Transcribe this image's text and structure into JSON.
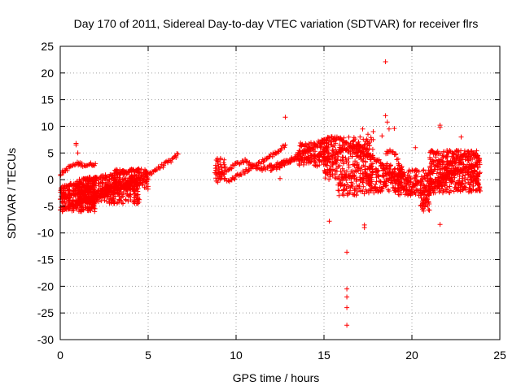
{
  "chart_data": {
    "type": "scatter",
    "title": "Day 170 of 2011, Sidereal Day-to-day VTEC variation (SDTVAR) for receiver flrs",
    "xlabel": "GPS time / hours",
    "ylabel": "SDTVAR / TECUs",
    "xlim": [
      0,
      25
    ],
    "ylim": [
      -30,
      25
    ],
    "xticks": [
      0,
      5,
      10,
      15,
      20,
      25
    ],
    "yticks": [
      -30,
      -25,
      -20,
      -15,
      -10,
      -5,
      0,
      5,
      10,
      15,
      20,
      25
    ],
    "grid": true,
    "legend": "none",
    "marker": "plus",
    "color": "#ff0000",
    "segments": [
      {
        "x": [
          0.0,
          0.5,
          1.0,
          1.5,
          2.0,
          3.0,
          4.0,
          5.0,
          5.5,
          6.0,
          6.5,
          6.7
        ],
        "y": [
          -3.5,
          -3.0,
          -2.5,
          -2.0,
          -2.5,
          -1.5,
          -0.5,
          1.0,
          2.0,
          3.0,
          4.0,
          4.8
        ]
      },
      {
        "x": [
          0.0,
          0.5,
          1.0,
          1.5,
          2.0,
          2.5,
          3.0,
          3.5,
          4.0
        ],
        "y": [
          -5.5,
          -5.0,
          -4.5,
          -4.0,
          -3.5,
          -3.0,
          -2.5,
          -1.5,
          -1.0
        ]
      },
      {
        "x": [
          0.0,
          0.3,
          0.6,
          1.0,
          1.5,
          2.0
        ],
        "y": [
          1.0,
          1.8,
          2.5,
          3.0,
          2.7,
          3.0
        ]
      },
      {
        "x": [
          0.5,
          1.0,
          1.5,
          2.0,
          2.5,
          3.0,
          3.5,
          4.0,
          4.5
        ],
        "y": [
          -1.0,
          -0.5,
          0.0,
          0.2,
          0.5,
          1.0,
          1.2,
          1.5,
          1.8
        ]
      },
      {
        "x": [
          1.0,
          1.5,
          2.0,
          2.5,
          3.0,
          3.5,
          4.0,
          4.5,
          5.0
        ],
        "y": [
          -4.0,
          -3.5,
          -3.0,
          -2.5,
          -2.0,
          -1.5,
          -1.0,
          -0.5,
          0.0
        ]
      },
      {
        "x": [
          8.8,
          9.2,
          9.6,
          10.0,
          10.5,
          11.0,
          11.5,
          12.0,
          12.5,
          13.0,
          13.5,
          14.0,
          14.5,
          15.0
        ],
        "y": [
          1.5,
          1.0,
          2.0,
          3.0,
          3.5,
          2.5,
          2.0,
          2.5,
          3.0,
          3.5,
          3.8,
          4.0,
          4.3,
          4.8
        ]
      },
      {
        "x": [
          9.5,
          10.0,
          10.5,
          11.0,
          11.5,
          12.0,
          12.5,
          12.8
        ],
        "y": [
          -0.5,
          0.5,
          1.5,
          2.5,
          3.5,
          4.5,
          5.5,
          6.5
        ]
      },
      {
        "x": [
          12.0,
          12.5,
          13.0,
          13.5,
          14.0,
          14.5,
          15.0
        ],
        "y": [
          2.0,
          2.5,
          3.5,
          4.5,
          5.5,
          6.5,
          7.5
        ]
      },
      {
        "x": [
          14.8,
          15.0,
          15.5,
          16.0,
          16.5,
          17.0,
          17.5
        ],
        "y": [
          6.0,
          7.5,
          7.8,
          7.5,
          6.5,
          5.5,
          4.5
        ]
      },
      {
        "x": [
          15.0,
          15.5,
          16.0,
          16.5,
          17.0,
          17.5,
          18.0
        ],
        "y": [
          3.5,
          4.5,
          5.5,
          6.0,
          6.5,
          5.0,
          3.5
        ]
      },
      {
        "x": [
          17.0,
          17.3,
          17.6,
          18.0,
          18.3,
          18.6,
          19.0,
          19.5
        ],
        "y": [
          6.0,
          2.0,
          -1.0,
          -2.0,
          -1.5,
          0.0,
          1.0,
          0.5
        ]
      },
      {
        "x": [
          18.0,
          18.5,
          19.0,
          19.5,
          20.0,
          20.5
        ],
        "y": [
          4.0,
          2.0,
          0.0,
          -1.5,
          -2.5,
          -2.0
        ]
      },
      {
        "x": [
          18.5,
          18.8,
          19.1,
          19.4,
          19.7,
          20.0,
          20.4
        ],
        "y": [
          5.0,
          5.5,
          4.5,
          2.0,
          0.0,
          -1.0,
          -0.5
        ]
      },
      {
        "x": [
          20.5,
          21.0,
          21.5,
          22.0,
          22.5,
          23.0,
          23.5,
          23.8
        ],
        "y": [
          -5.0,
          -2.5,
          -1.0,
          0.5,
          1.5,
          2.0,
          2.5,
          3.5
        ]
      },
      {
        "x": [
          21.0,
          21.5,
          22.0,
          22.5,
          23.0,
          23.5,
          23.8
        ],
        "y": [
          -1.0,
          0.0,
          1.0,
          2.0,
          1.5,
          0.5,
          -1.0
        ]
      },
      {
        "x": [
          22.0,
          22.5,
          23.0,
          23.5,
          23.8
        ],
        "y": [
          3.0,
          4.0,
          4.5,
          5.0,
          4.0
        ]
      }
    ],
    "clusters": [
      {
        "x": [
          0.0,
          2.0
        ],
        "y": [
          -6.0,
          -1.0
        ],
        "count": 260
      },
      {
        "x": [
          1.0,
          4.5
        ],
        "y": [
          -4.5,
          0.5
        ],
        "count": 300
      },
      {
        "x": [
          3.0,
          5.0
        ],
        "y": [
          -2.0,
          2.0
        ],
        "count": 140
      },
      {
        "x": [
          8.8,
          9.4
        ],
        "y": [
          -0.5,
          4.0
        ],
        "count": 40
      },
      {
        "x": [
          13.5,
          15.3
        ],
        "y": [
          2.5,
          7.0
        ],
        "count": 120
      },
      {
        "x": [
          15.0,
          17.8
        ],
        "y": [
          0.0,
          8.0
        ],
        "count": 260
      },
      {
        "x": [
          15.8,
          17.5
        ],
        "y": [
          -3.0,
          1.0
        ],
        "count": 80
      },
      {
        "x": [
          17.5,
          19.5
        ],
        "y": [
          -2.5,
          3.0
        ],
        "count": 140
      },
      {
        "x": [
          19.2,
          21.0
        ],
        "y": [
          -3.0,
          2.0
        ],
        "count": 120
      },
      {
        "x": [
          21.0,
          23.9
        ],
        "y": [
          -2.5,
          5.5
        ],
        "count": 420
      },
      {
        "x": [
          20.5,
          21.0
        ],
        "y": [
          -6.0,
          -1.0
        ],
        "count": 40
      }
    ],
    "outliers": {
      "x": [
        0.9,
        0.9,
        1.0,
        12.8,
        15.3,
        16.3,
        16.3,
        16.3,
        16.3,
        16.3,
        16.5,
        16.7,
        17.2,
        17.3,
        17.3,
        17.5,
        17.7,
        17.8,
        17.6,
        18.5,
        18.5,
        18.6,
        18.7,
        18.3,
        19.0,
        20.2,
        21.6,
        21.6,
        21.6,
        22.8,
        22.5,
        15.8,
        20.5,
        12.5
      ],
      "y": [
        6.8,
        6.5,
        5.0,
        11.7,
        -7.8,
        -13.6,
        -20.5,
        -22.0,
        -24.0,
        -27.3,
        -1.5,
        -2.8,
        9.5,
        -8.5,
        -9.0,
        8.5,
        7.5,
        9.0,
        7.0,
        22.1,
        12.0,
        10.8,
        9.5,
        8.2,
        9.6,
        6.0,
        10.2,
        9.8,
        -8.4,
        8.0,
        -1.5,
        -2.0,
        -3.0,
        0.2
      ]
    }
  }
}
